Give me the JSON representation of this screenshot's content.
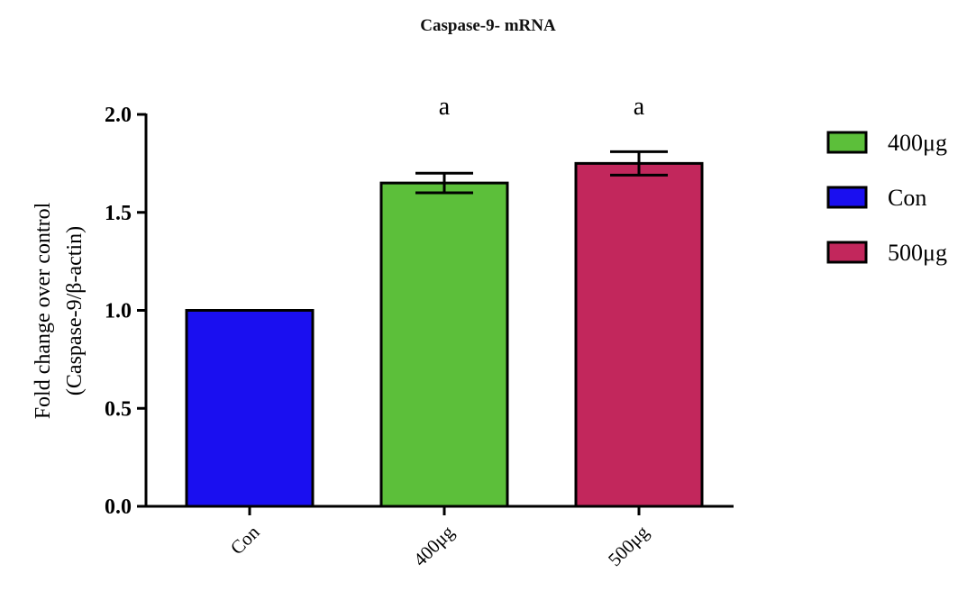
{
  "chart_data": {
    "type": "bar",
    "title": "Caspase-9- mRNA",
    "ylabel_line1": "Fold change over control",
    "ylabel_line2": "(Caspase-9/β-actin)",
    "xlabel": "",
    "categories": [
      "Con",
      "400μg",
      "500μg"
    ],
    "values": [
      1.0,
      1.65,
      1.75
    ],
    "errors": [
      0.0,
      0.05,
      0.06
    ],
    "annotations": [
      "",
      "a",
      "a"
    ],
    "ylim": [
      0,
      2.0
    ],
    "yticks": [
      "0.0",
      "0.5",
      "1.0",
      "1.5",
      "2.0"
    ],
    "colors": {
      "Con": "#1a0ff0",
      "400μg": "#5cbf3a",
      "500μg": "#c2275c"
    },
    "legend": {
      "position": "right",
      "entries": [
        {
          "label": "400μg",
          "color": "#5cbf3a"
        },
        {
          "label": "Con",
          "color": "#1a0ff0"
        },
        {
          "label": "500μg",
          "color": "#c2275c"
        }
      ]
    },
    "grid": false
  }
}
